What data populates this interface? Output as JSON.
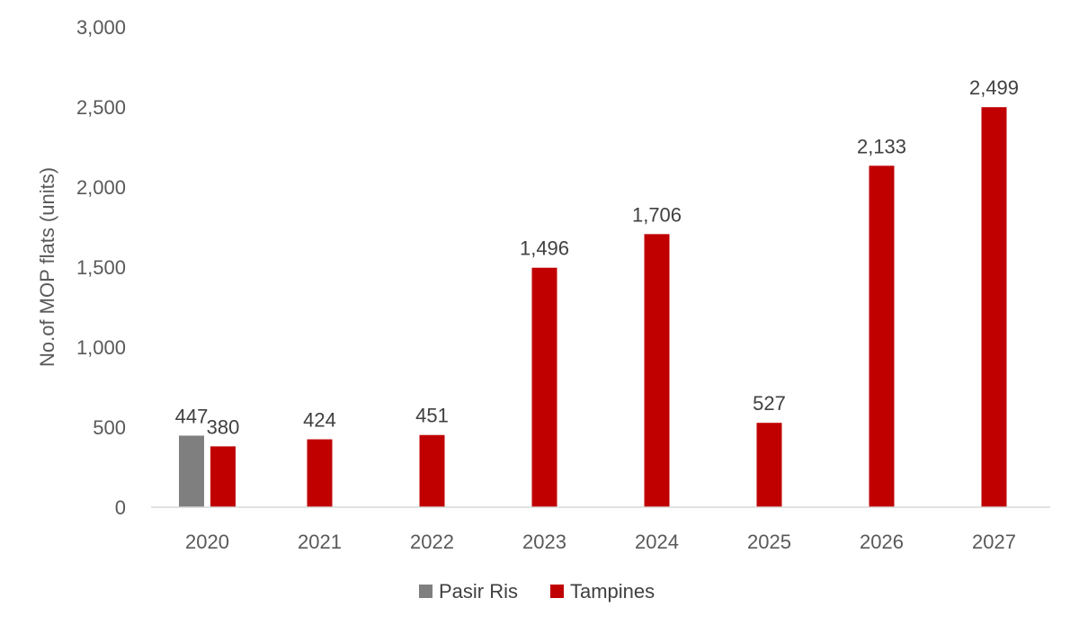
{
  "chart_data": {
    "type": "bar",
    "categories": [
      "2020",
      "2021",
      "2022",
      "2023",
      "2024",
      "2025",
      "2026",
      "2027"
    ],
    "series": [
      {
        "name": "Pasir Ris",
        "color": "#7f7f7f",
        "values": [
          447,
          null,
          null,
          null,
          null,
          null,
          null,
          null
        ]
      },
      {
        "name": "Tampines",
        "color": "#c00000",
        "values": [
          380,
          424,
          451,
          1496,
          1706,
          527,
          2133,
          2499
        ]
      }
    ],
    "data_labels": [
      [
        "447",
        "",
        "",
        "",
        "",
        "",
        "",
        ""
      ],
      [
        "380",
        "424",
        "451",
        "1,496",
        "1,706",
        "527",
        "2,133",
        "2,499"
      ]
    ],
    "ylabel": "No.of MOP flats (units)",
    "ylim": [
      0,
      3000
    ],
    "yticks": [
      0,
      500,
      1000,
      1500,
      2000,
      2500,
      3000
    ],
    "ytick_labels": [
      "0",
      "500",
      "1,000",
      "1,500",
      "2,000",
      "2,500",
      "3,000"
    ],
    "grid": false,
    "legend_position": "bottom"
  }
}
